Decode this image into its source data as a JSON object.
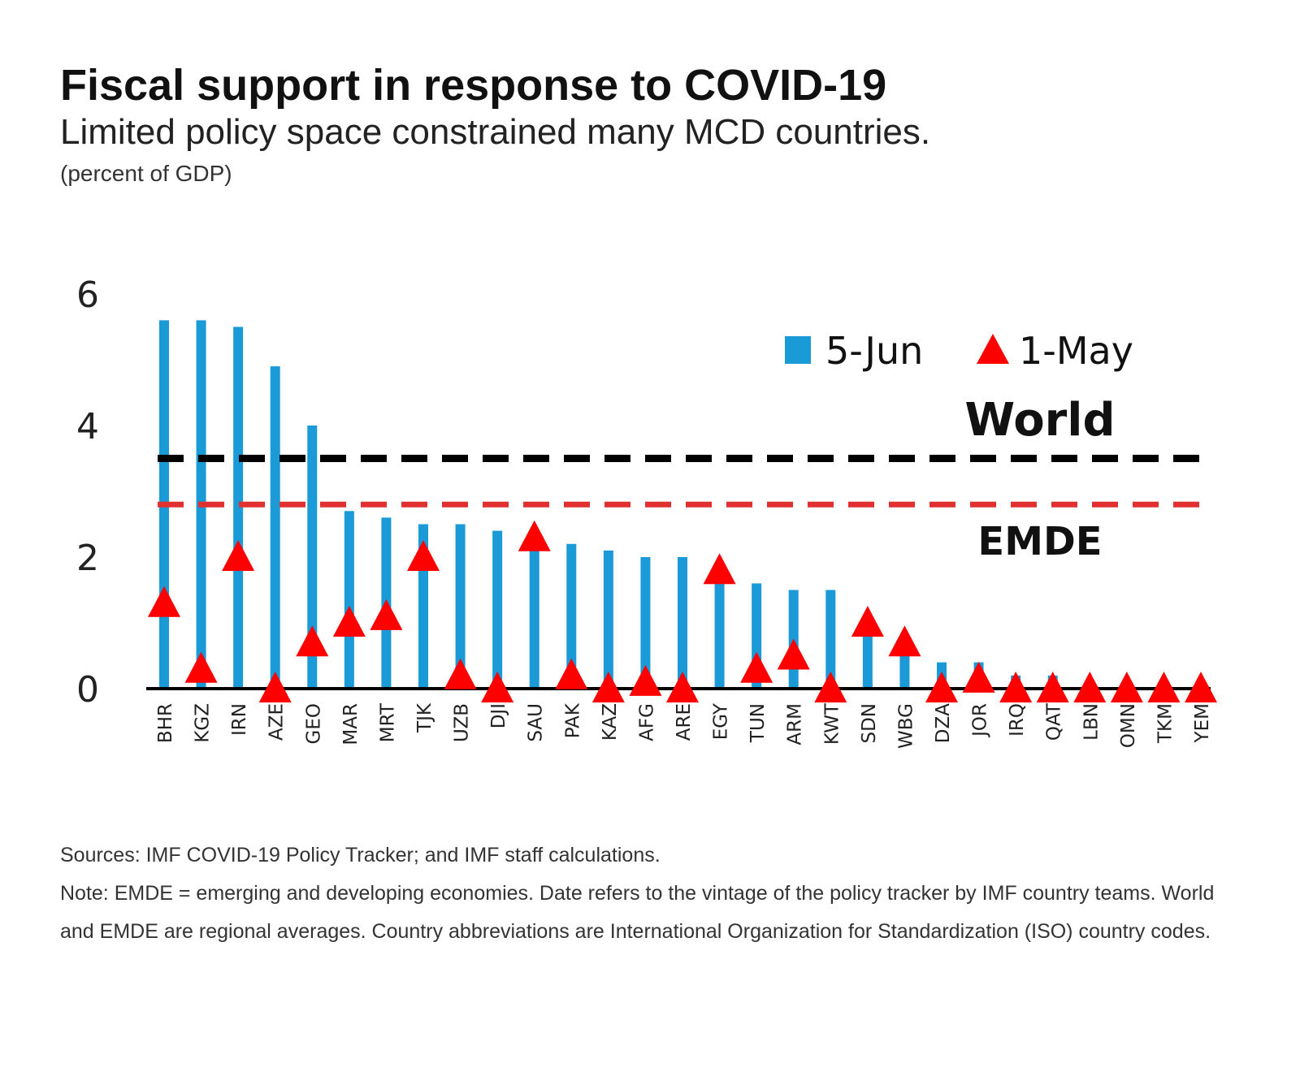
{
  "title": "Fiscal support in response to COVID-19",
  "subtitle": "Limited policy space constrained many MCD countries.",
  "unit_note": "(percent of GDP)",
  "sources": "Sources: IMF COVID-19 Policy Tracker; and IMF staff calculations.",
  "note": "Note: EMDE = emerging and developing economies. Date refers to the vintage of the policy tracker by IMF country teams. World and EMDE are regional averages. Country abbreviations are International Organization for Standardization (ISO) country codes.",
  "colors": {
    "bar": "#1a9ad6",
    "marker": "#ff0000",
    "world_line": "#000000",
    "emde_line": "#e03030",
    "axis": "#000000"
  },
  "chart_data": {
    "type": "bar",
    "categories": [
      "BHR",
      "KGZ",
      "IRN",
      "AZE",
      "GEO",
      "MAR",
      "MRT",
      "TJK",
      "UZB",
      "DJI",
      "SAU",
      "PAK",
      "KAZ",
      "AFG",
      "ARE",
      "EGY",
      "TUN",
      "ARM",
      "KWT",
      "SDN",
      "WBG",
      "DZA",
      "JOR",
      "IRQ",
      "QAT",
      "LBN",
      "OMN",
      "TKM",
      "YEM"
    ],
    "series": [
      {
        "name": "5-Jun",
        "kind": "bar",
        "values": [
          5.6,
          5.6,
          5.5,
          4.9,
          4.0,
          2.7,
          2.6,
          2.5,
          2.5,
          2.4,
          2.3,
          2.2,
          2.1,
          2.0,
          2.0,
          1.8,
          1.6,
          1.5,
          1.5,
          1.0,
          0.6,
          0.4,
          0.4,
          0.2,
          0.2,
          0.0,
          0.0,
          0.0,
          0.0
        ]
      },
      {
        "name": "1-May",
        "kind": "marker",
        "values": [
          1.3,
          0.3,
          2.0,
          0.0,
          0.7,
          1.0,
          1.1,
          2.0,
          0.2,
          0.0,
          2.3,
          0.2,
          0.0,
          0.1,
          0.0,
          1.8,
          0.3,
          0.5,
          0.0,
          1.0,
          0.7,
          0.0,
          0.15,
          0.0,
          0.0,
          0.0,
          0.0,
          0.0,
          0.0
        ]
      }
    ],
    "reference_lines": [
      {
        "name": "World",
        "value": 3.5,
        "style": "dashed"
      },
      {
        "name": "EMDE",
        "value": 2.8,
        "style": "dashed"
      }
    ],
    "yticks": [
      0,
      2,
      4,
      6
    ],
    "ylim": [
      0,
      6
    ],
    "legend_position": "top-right",
    "grid": false
  }
}
